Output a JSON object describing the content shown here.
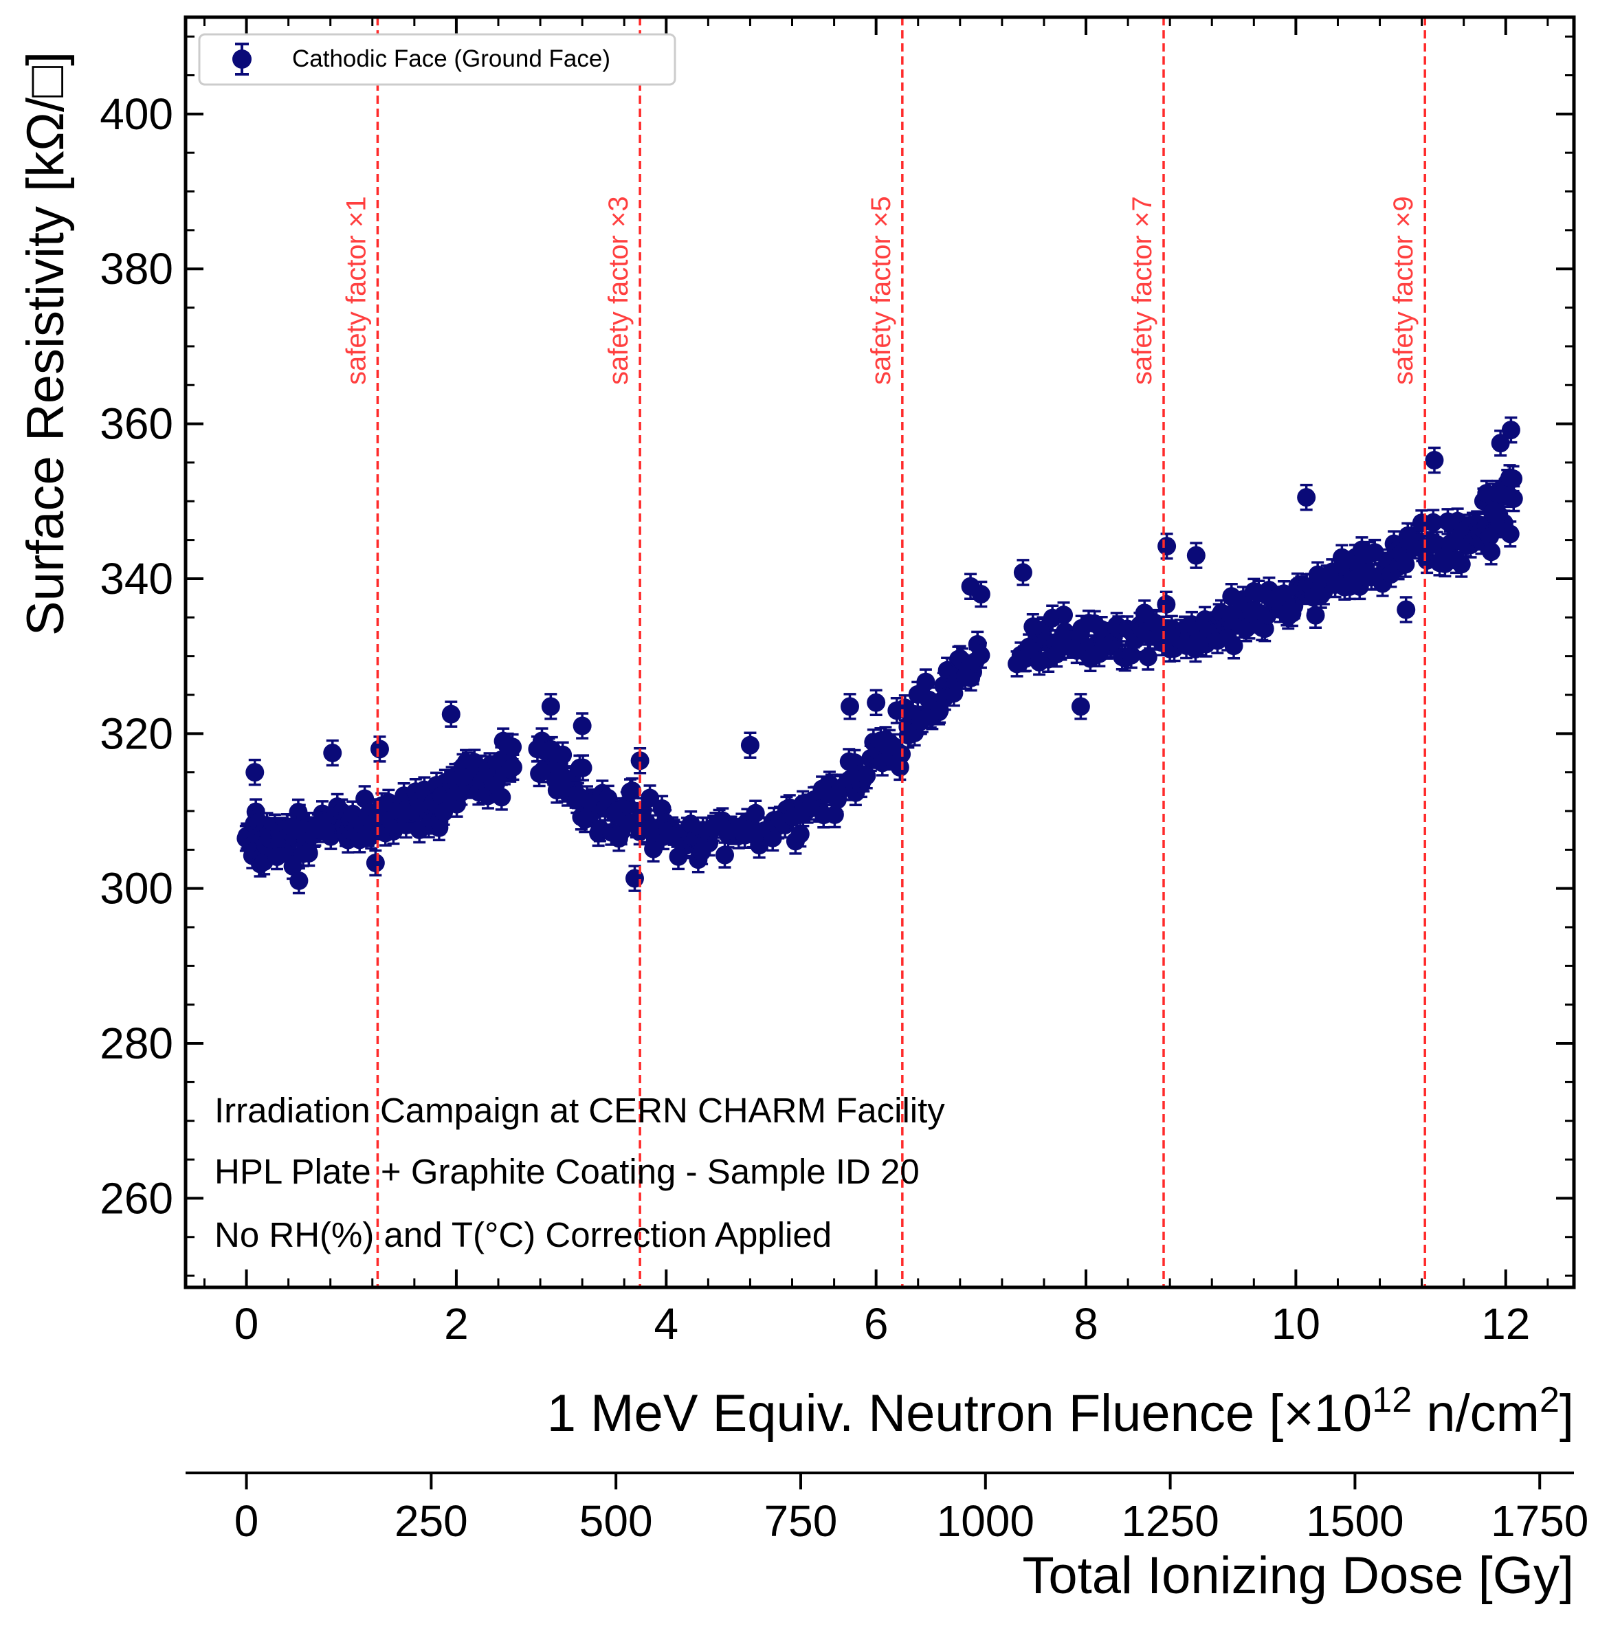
{
  "chart_data": {
    "type": "scatter",
    "xlabel_main": "1 MeV Equiv. Neutron Fluence [×10",
    "xlabel_exp1": "12",
    "xlabel_mid": " n/cm",
    "xlabel_exp2": "2",
    "xlabel_end": "]",
    "x2label": "Total Ionizing Dose [Gy]",
    "ylabel": "Surface Resistivity [kΩ/□]",
    "xlim": [
      -0.58,
      12.65
    ],
    "ylim": [
      248.5,
      412.5
    ],
    "x_ticks": [
      0,
      2,
      4,
      6,
      8,
      10,
      12
    ],
    "x_tick_labels": [
      "0",
      "2",
      "4",
      "6",
      "8",
      "10",
      "12"
    ],
    "y_ticks": [
      260,
      280,
      300,
      320,
      340,
      360,
      380,
      400
    ],
    "y_tick_labels": [
      "260",
      "280",
      "300",
      "320",
      "340",
      "360",
      "380",
      "400"
    ],
    "x2_ticks": [
      0,
      250,
      500,
      750,
      1000,
      1250,
      1500,
      1750
    ],
    "x2_tick_labels": [
      "0",
      "250",
      "500",
      "750",
      "1000",
      "1250",
      "1500",
      "1750"
    ],
    "x2_per_x1": 142.0,
    "legend": {
      "label": "Cathodic Face (Ground Face)",
      "position": "top-left"
    },
    "series_color": "#0a0a78",
    "marker_error": 1.6,
    "safety_lines": [
      {
        "x": 1.25,
        "label": "safety factor ×1"
      },
      {
        "x": 3.75,
        "label": "safety factor ×3"
      },
      {
        "x": 6.25,
        "label": "safety factor ×5"
      },
      {
        "x": 8.74,
        "label": "safety factor ×7"
      },
      {
        "x": 11.23,
        "label": "safety factor ×9"
      }
    ],
    "safety_line_color": "#ff2a2a",
    "annotations": [
      "Irradiation Campaign at CERN CHARM Facility",
      "HPL Plate + Graphite Coating - Sample ID 20",
      "No RH(%) and T(°C) Correction Applied"
    ],
    "trend_segments": [
      {
        "x_start": 0.0,
        "x_end": 0.6,
        "y_start": 306,
        "y_end": 307,
        "n": 45,
        "spread": 2.6
      },
      {
        "x_start": 0.6,
        "x_end": 1.5,
        "y_start": 307,
        "y_end": 310,
        "n": 45,
        "spread": 2.4
      },
      {
        "x_start": 1.5,
        "x_end": 2.0,
        "y_start": 310,
        "y_end": 313,
        "n": 30,
        "spread": 3.0
      },
      {
        "x_start": 2.0,
        "x_end": 2.55,
        "y_start": 313,
        "y_end": 316,
        "n": 40,
        "spread": 2.5
      },
      {
        "x_start": 2.78,
        "x_end": 3.2,
        "y_start": 317,
        "y_end": 312,
        "n": 25,
        "spread": 3.0
      },
      {
        "x_start": 3.2,
        "x_end": 4.3,
        "y_start": 311,
        "y_end": 306,
        "n": 45,
        "spread": 2.6
      },
      {
        "x_start": 4.3,
        "x_end": 5.3,
        "y_start": 306,
        "y_end": 309,
        "n": 35,
        "spread": 2.5
      },
      {
        "x_start": 5.3,
        "x_end": 6.3,
        "y_start": 310,
        "y_end": 320,
        "n": 40,
        "spread": 2.5
      },
      {
        "x_start": 6.3,
        "x_end": 7.0,
        "y_start": 321,
        "y_end": 330,
        "n": 30,
        "spread": 2.5
      },
      {
        "x_start": 7.35,
        "x_end": 8.8,
        "y_start": 331,
        "y_end": 334,
        "n": 55,
        "spread": 2.6
      },
      {
        "x_start": 8.8,
        "x_end": 9.6,
        "y_start": 332,
        "y_end": 335,
        "n": 35,
        "spread": 2.4
      },
      {
        "x_start": 9.6,
        "x_end": 10.6,
        "y_start": 335,
        "y_end": 341,
        "n": 40,
        "spread": 2.5
      },
      {
        "x_start": 10.6,
        "x_end": 11.6,
        "y_start": 341,
        "y_end": 345,
        "n": 40,
        "spread": 2.5
      },
      {
        "x_start": 11.6,
        "x_end": 12.08,
        "y_start": 345,
        "y_end": 351,
        "n": 35,
        "spread": 3.0
      }
    ],
    "outliers": [
      {
        "x": 0.08,
        "y": 315
      },
      {
        "x": 0.82,
        "y": 317.5
      },
      {
        "x": 1.27,
        "y": 318
      },
      {
        "x": 1.95,
        "y": 322.5
      },
      {
        "x": 2.9,
        "y": 323.5
      },
      {
        "x": 3.2,
        "y": 321
      },
      {
        "x": 3.75,
        "y": 316.5
      },
      {
        "x": 3.7,
        "y": 301.3
      },
      {
        "x": 4.8,
        "y": 318.5
      },
      {
        "x": 5.75,
        "y": 323.5
      },
      {
        "x": 6.0,
        "y": 324
      },
      {
        "x": 6.9,
        "y": 339
      },
      {
        "x": 7.0,
        "y": 338
      },
      {
        "x": 7.4,
        "y": 340.8
      },
      {
        "x": 7.95,
        "y": 323.5
      },
      {
        "x": 9.05,
        "y": 343
      },
      {
        "x": 8.77,
        "y": 344.2
      },
      {
        "x": 10.1,
        "y": 350.5
      },
      {
        "x": 11.32,
        "y": 355.3
      },
      {
        "x": 11.05,
        "y": 336
      },
      {
        "x": 12.05,
        "y": 359.2
      },
      {
        "x": 11.95,
        "y": 357.5
      },
      {
        "x": 0.5,
        "y": 301
      },
      {
        "x": 1.23,
        "y": 303.3
      }
    ]
  }
}
